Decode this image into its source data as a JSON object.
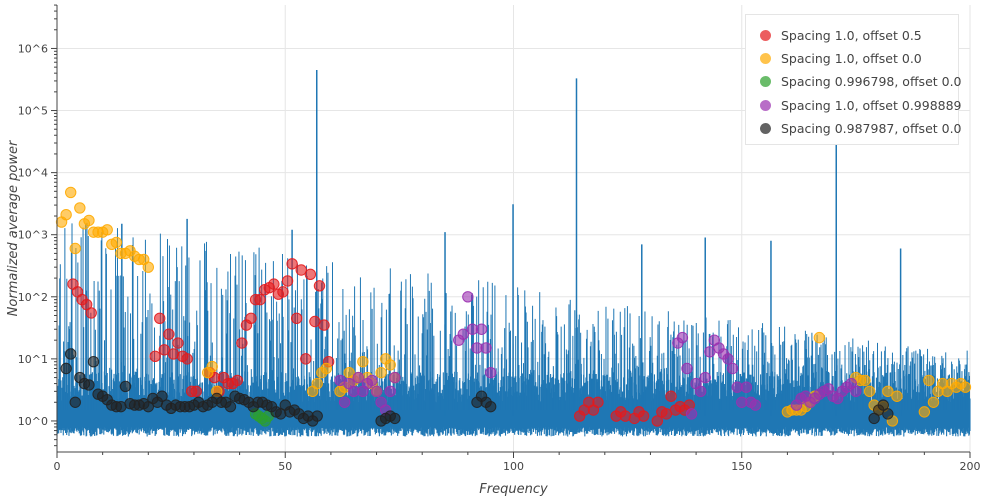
{
  "chart_data": {
    "type": "scatter",
    "xlabel": "Frequency",
    "ylabel": "Normalized average power",
    "xlim": [
      0,
      200
    ],
    "ylim_log10": [
      -0.5,
      6.7
    ],
    "y_scale": "log",
    "grid": true,
    "legend_position": "top-right",
    "x_ticks": [
      "0",
      "50",
      "100",
      "150",
      "200"
    ],
    "y_ticks": [
      "10^0",
      "10^1",
      "10^2",
      "10^3",
      "10^4",
      "10^5",
      "10^6"
    ],
    "spectrum": {
      "color": "#1f77b4",
      "noise_floor": 1.0,
      "peaks": [
        {
          "x": 56.9,
          "y": 450000
        },
        {
          "x": 113.8,
          "y": 330000
        },
        {
          "x": 170.7,
          "y": 65000
        },
        {
          "x": 99.9,
          "y": 3100
        },
        {
          "x": 28.5,
          "y": 1800
        },
        {
          "x": 51.5,
          "y": 1200
        },
        {
          "x": 85.0,
          "y": 1100
        },
        {
          "x": 14.2,
          "y": 1500
        },
        {
          "x": 142.0,
          "y": 900
        },
        {
          "x": 128.1,
          "y": 700
        },
        {
          "x": 156.4,
          "y": 800
        },
        {
          "x": 184.8,
          "y": 600
        }
      ]
    },
    "series": [
      {
        "name": "Spacing 1.0, offset 0.5",
        "color": "#e41a1c",
        "x": [
          3.5,
          4.5,
          5.5,
          6.5,
          7.5,
          21.5,
          22.5,
          23.5,
          24.5,
          25.5,
          26.5,
          27.5,
          28.5,
          29.5,
          30.5,
          33.5,
          34.5,
          35.5,
          36.5,
          37.5,
          38.5,
          39.5,
          40.5,
          41.5,
          42.5,
          43.5,
          44.5,
          45.5,
          46.5,
          47.5,
          48.5,
          49.5,
          50.5,
          51.5,
          52.5,
          53.5,
          54.5,
          55.5,
          56.5,
          57.5,
          58.5,
          59.5,
          114.5,
          115.5,
          116.5,
          117.5,
          118.5,
          122.5,
          123.5,
          124.5,
          126.5,
          127.5,
          128.5,
          131.5,
          132.5,
          133.5,
          134.5,
          135.5,
          136.5,
          137.5,
          138.5
        ],
        "y": [
          160,
          120,
          90,
          75,
          55,
          11,
          45,
          14,
          25,
          12,
          18,
          11,
          10,
          3,
          3,
          6,
          5,
          3,
          5,
          4,
          4,
          4.5,
          18,
          35,
          45,
          90,
          90,
          130,
          140,
          160,
          110,
          120,
          180,
          340,
          45,
          270,
          10,
          230,
          40,
          150,
          35,
          9,
          1.2,
          1.5,
          2,
          1.5,
          2,
          1.2,
          1.4,
          1.2,
          1.1,
          1.4,
          1.2,
          1,
          1.4,
          1.3,
          2.5,
          1.5,
          1.7,
          1.5,
          1.8
        ]
      },
      {
        "name": "Spacing 1.0, offset 0.0",
        "color": "#ffaa00",
        "x": [
          1,
          2,
          3,
          4,
          5,
          6,
          7,
          8,
          9,
          10,
          11,
          12,
          13,
          14,
          15,
          16,
          17,
          18,
          19,
          20,
          33,
          34,
          35,
          56,
          57,
          58,
          59,
          62,
          63,
          64,
          65,
          66,
          67,
          68,
          69,
          70,
          71,
          72,
          73,
          74,
          160,
          161,
          162,
          163,
          164,
          165,
          166,
          167,
          175,
          176,
          177,
          178,
          179,
          180,
          181,
          182,
          183,
          184,
          190,
          191,
          192,
          193,
          194,
          195,
          196,
          197,
          198,
          199
        ],
        "y": [
          1600,
          2100,
          4800,
          600,
          2700,
          1500,
          1700,
          1100,
          1100,
          1100,
          1200,
          700,
          750,
          500,
          500,
          550,
          450,
          400,
          400,
          300,
          6,
          7.5,
          3,
          3,
          4,
          6,
          7,
          3,
          3.5,
          6,
          4.5,
          5,
          9,
          5,
          4,
          3,
          6,
          10,
          8,
          5,
          1.4,
          1.5,
          1.5,
          1.5,
          1.7,
          2,
          2.5,
          22,
          5,
          4.5,
          4.5,
          3,
          1.8,
          1.5,
          1.7,
          3,
          1,
          2.5,
          1.4,
          4.5,
          2,
          3,
          4,
          3,
          4,
          3.5,
          4,
          3.5
        ]
      },
      {
        "name": "Spacing 0.996798, offset 0.0",
        "color": "#2ca02c",
        "x": [
          43.5,
          44.2,
          44.9,
          45.6,
          46.3
        ],
        "y": [
          1.3,
          1.2,
          1.1,
          1.0,
          1.2
        ]
      },
      {
        "name": "Spacing 1.0, offset 0.998889",
        "color": "#9b30b0",
        "x": [
          62,
          63,
          64,
          65,
          66,
          67,
          68,
          69,
          70,
          71,
          72,
          73,
          74,
          88,
          89,
          90,
          91,
          92,
          93,
          94,
          95,
          136,
          137,
          138,
          139,
          140,
          141,
          142,
          143,
          144,
          145,
          146,
          147,
          148,
          149,
          150,
          151,
          152,
          153,
          162,
          163,
          164,
          165,
          166,
          167,
          168,
          169,
          170,
          171,
          172,
          173,
          174,
          175
        ],
        "y": [
          4.5,
          2,
          4,
          3,
          5,
          3,
          4,
          4.5,
          3,
          2,
          1.5,
          3,
          5,
          20,
          25,
          100,
          30,
          15,
          30,
          15,
          6,
          18,
          22,
          7,
          1.3,
          4,
          3,
          5,
          13,
          20,
          15,
          12,
          10,
          7,
          3.5,
          2,
          3.5,
          2,
          1.8,
          1.8,
          2.3,
          2.5,
          2,
          2.3,
          2.7,
          3,
          3.3,
          2.5,
          2.3,
          3,
          3.5,
          4,
          3
        ]
      },
      {
        "name": "Spacing 0.987987, offset 0.0",
        "color": "#222222",
        "x": [
          2,
          3,
          4,
          5,
          6,
          7,
          8,
          9,
          10,
          11,
          12,
          13,
          14,
          15,
          16,
          17,
          18,
          19,
          20,
          21,
          22,
          23,
          24,
          25,
          26,
          27,
          28,
          29,
          30,
          31,
          32,
          33,
          34,
          35,
          36,
          37,
          38,
          39,
          40,
          41,
          42,
          43,
          44,
          45,
          46,
          47,
          48,
          49,
          50,
          51,
          52,
          53,
          54,
          55,
          56,
          57,
          71,
          72,
          73,
          74,
          92,
          93,
          94,
          95,
          179,
          180,
          181,
          182
        ],
        "y": [
          7,
          12,
          2,
          5,
          4,
          3.8,
          9,
          2.7,
          2.5,
          2.2,
          1.8,
          1.7,
          1.7,
          3.6,
          1.9,
          1.8,
          1.8,
          1.9,
          1.7,
          2.3,
          2,
          2.5,
          1.8,
          1.6,
          1.8,
          1.7,
          1.7,
          1.7,
          1.8,
          2,
          1.7,
          1.8,
          2,
          2.3,
          2,
          2,
          1.7,
          2.5,
          2.3,
          2.2,
          2,
          1.7,
          2,
          2,
          1.8,
          1.7,
          1.4,
          1.3,
          1.8,
          1.4,
          1.5,
          1.3,
          1.1,
          1.2,
          1.0,
          1.2,
          1.0,
          1.1,
          1.2,
          1.1,
          2,
          2.5,
          2,
          1.7,
          1.1,
          1.5,
          1.8,
          1.3
        ]
      }
    ]
  }
}
